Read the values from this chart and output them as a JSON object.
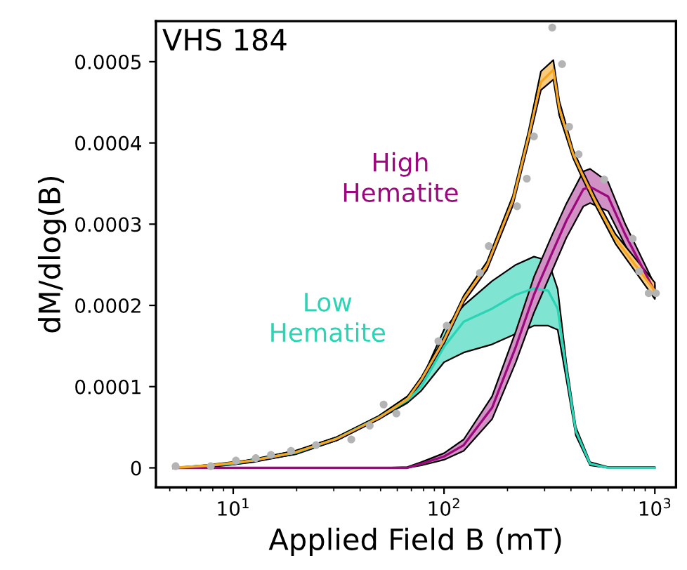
{
  "chart_data": {
    "type": "line",
    "title": "VHS 184",
    "xlabel": "Applied Field B (mT)",
    "ylabel": "dM/dlog(B)",
    "log": "x",
    "xlim": [
      4.3,
      1260
    ],
    "ylim": [
      -2.4e-05,
      0.00055
    ],
    "xticks": [
      {
        "value": 10,
        "label": "10$^{1}$"
      },
      {
        "value": 100,
        "label": "10$^{2}$"
      },
      {
        "value": 1000,
        "label": "10$^{3}$"
      }
    ],
    "yticks": [
      0,
      0.0001,
      0.0002,
      0.0003,
      0.0004,
      0.0005
    ],
    "grid": false,
    "legend": false,
    "series": [
      {
        "name": "Low Hematite",
        "color": "#2ad4b4",
        "x": [
          5.2,
          10,
          20,
          31,
          49,
          67,
          78,
          100,
          124,
          169,
          219,
          267,
          312,
          346,
          380,
          422,
          493,
          600,
          1000
        ],
        "values": [
          0,
          5e-06,
          1.9e-05,
          3.6e-05,
          6.2e-05,
          8.3e-05,
          0.0001,
          0.000149,
          0.00018,
          0.000196,
          0.000213,
          0.000221,
          0.000218,
          0.000196,
          0.000121,
          4.5e-05,
          5e-06,
          0,
          0
        ],
        "upper": [
          0,
          6e-06,
          2.1e-05,
          3.8e-05,
          6.4e-05,
          8.8e-05,
          0.000108,
          0.00017,
          0.0002,
          0.00023,
          0.00025,
          0.00026,
          0.000255,
          0.00022,
          0.00013,
          5e-05,
          7e-06,
          1e-06,
          1e-06
        ],
        "lower": [
          0,
          4e-06,
          1.7e-05,
          3.4e-05,
          6e-05,
          8e-05,
          9.5e-05,
          0.00013,
          0.000142,
          0.000152,
          0.000165,
          0.000175,
          0.000175,
          0.00017,
          0.00011,
          4e-05,
          3e-06,
          0,
          0
        ]
      },
      {
        "name": "High Hematite",
        "color": "#9b0a7d",
        "x": [
          5.2,
          20,
          50,
          67,
          78,
          100,
          124,
          169,
          219,
          267,
          326,
          380,
          458,
          493,
          600,
          724,
          1000
        ],
        "values": [
          0,
          0,
          0,
          0,
          5e-06,
          1.4e-05,
          2.8e-05,
          7.4e-05,
          0.000149,
          0.000213,
          0.000265,
          0.000304,
          0.000343,
          0.000346,
          0.000334,
          0.000287,
          0.000217
        ],
        "upper": [
          0,
          0,
          0,
          1e-06,
          7e-06,
          1.8e-05,
          3.5e-05,
          8.8e-05,
          0.000168,
          0.000235,
          0.000287,
          0.000325,
          0.000365,
          0.000368,
          0.000352,
          0.0003,
          0.000225
        ],
        "lower": [
          0,
          0,
          0,
          0,
          3e-06,
          1e-05,
          2.1e-05,
          6e-05,
          0.00013,
          0.000191,
          0.000243,
          0.000283,
          0.000322,
          0.000326,
          0.000316,
          0.000274,
          0.000209
        ]
      },
      {
        "color": "#f5a623",
        "x": [
          5.2,
          7.8,
          12.4,
          19.6,
          31.1,
          49.3,
          67.1,
          78.2,
          100,
          124,
          160,
          212,
          252,
          288,
          330,
          352,
          410,
          450,
          520,
          650,
          1000
        ],
        "values": [
          0,
          3e-06,
          9e-06,
          1.9e-05,
          3.6e-05,
          6.2e-05,
          8.5e-05,
          0.000109,
          0.000157,
          0.000208,
          0.000249,
          0.000329,
          0.000408,
          0.000475,
          0.00049,
          0.000443,
          0.000386,
          0.000363,
          0.000329,
          0.000282,
          0.000218
        ],
        "upper": [
          0,
          4e-06,
          1e-05,
          2.1e-05,
          3.8e-05,
          6.4e-05,
          8.8e-05,
          0.000112,
          0.000161,
          0.000212,
          0.000254,
          0.000335,
          0.000415,
          0.000488,
          0.000502,
          0.000452,
          0.000391,
          0.000368,
          0.000334,
          0.000288,
          0.000228
        ],
        "lower": [
          0,
          1e-06,
          7e-06,
          1.7e-05,
          3.4e-05,
          6e-05,
          8.2e-05,
          0.000106,
          0.000153,
          0.000204,
          0.000244,
          0.000323,
          0.000401,
          0.000465,
          0.000478,
          0.000434,
          0.000381,
          0.000358,
          0.000324,
          0.000276,
          0.000208
        ]
      },
      {
        "type": "scatter",
        "color": "#b4b4b4",
        "x": [
          5.33,
          7.82,
          10.3,
          12.8,
          15.1,
          18.8,
          24.7,
          36.3,
          44.4,
          51.7,
          59.4,
          94,
          103,
          148,
          163,
          222,
          247,
          267,
          326,
          363,
          392,
          435,
          575,
          785,
          843,
          935,
          1012
        ],
        "values": [
          2e-06,
          2e-06,
          9e-06,
          1.2e-05,
          1.6e-05,
          2.1e-05,
          2.8e-05,
          3.5e-05,
          5.2e-05,
          7.8e-05,
          6.7e-05,
          0.000156,
          0.000175,
          0.00024,
          0.000273,
          0.000322,
          0.000356,
          0.000408,
          0.000542,
          0.000497,
          0.00042,
          0.000386,
          0.000355,
          0.000282,
          0.000242,
          0.000215,
          0.000215
        ]
      }
    ]
  }
}
